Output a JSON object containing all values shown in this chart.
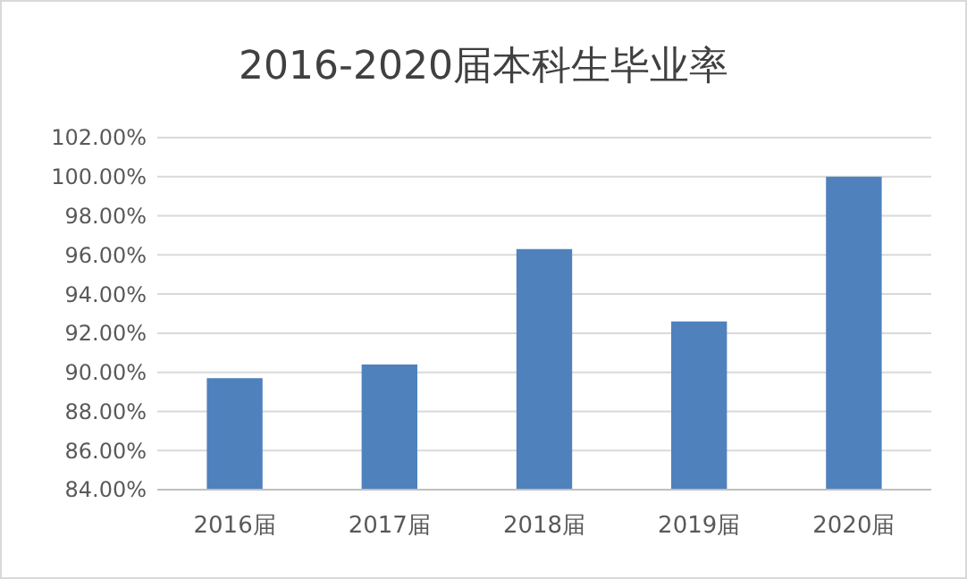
{
  "chart_data": {
    "type": "bar",
    "title": "2016-2020届本科生毕业率",
    "categories": [
      "2016届",
      "2017届",
      "2018届",
      "2019届",
      "2020届"
    ],
    "values": [
      89.7,
      90.4,
      96.3,
      92.6,
      100.0
    ],
    "color": "#4f81bd",
    "ylim": [
      84,
      102
    ],
    "yticks": [
      {
        "value": 84,
        "label": "84.00%"
      },
      {
        "value": 86,
        "label": "86.00%"
      },
      {
        "value": 88,
        "label": "88.00%"
      },
      {
        "value": 90,
        "label": "90.00%"
      },
      {
        "value": 92,
        "label": "92.00%"
      },
      {
        "value": 94,
        "label": "94.00%"
      },
      {
        "value": 96,
        "label": "96.00%"
      },
      {
        "value": 98,
        "label": "98.00%"
      },
      {
        "value": 100,
        "label": "100.00%"
      },
      {
        "value": 102,
        "label": "102.00%"
      }
    ],
    "grid": "y"
  }
}
